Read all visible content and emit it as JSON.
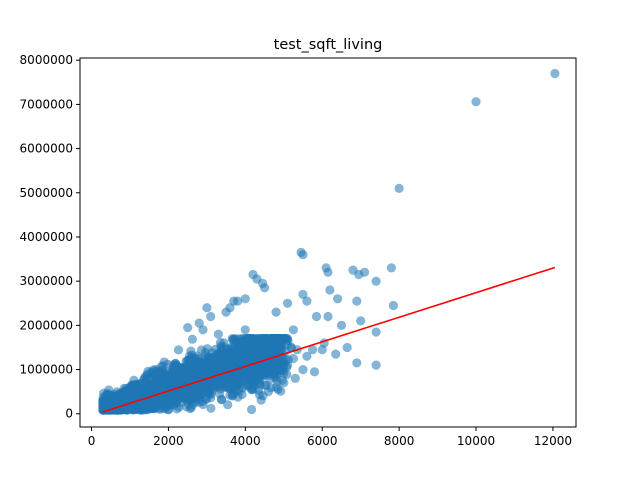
{
  "chart_data": {
    "type": "scatter",
    "title": "test_sqft_living",
    "xlabel": "",
    "ylabel": "",
    "xlim": [
      -300,
      12600
    ],
    "ylim": [
      -300000,
      8050000
    ],
    "x_ticks": [
      0,
      2000,
      4000,
      6000,
      8000,
      10000,
      12000
    ],
    "x_tick_labels": [
      "0",
      "2000",
      "4000",
      "6000",
      "8000",
      "10000",
      "12000"
    ],
    "y_ticks": [
      0,
      1000000,
      2000000,
      3000000,
      4000000,
      5000000,
      6000000,
      7000000,
      8000000
    ],
    "y_tick_labels": [
      "0",
      "1000000",
      "2000000",
      "3000000",
      "4000000",
      "5000000",
      "6000000",
      "7000000",
      "8000000"
    ],
    "grid": false,
    "series": [
      {
        "kind": "scatter",
        "color": "#1f77b4",
        "alpha": 0.55,
        "points": [
          [
            12050,
            7700000
          ],
          [
            10000,
            7060000
          ],
          [
            8000,
            5100000
          ],
          [
            5450,
            3650000
          ],
          [
            5500,
            3600000
          ],
          [
            4200,
            3150000
          ],
          [
            4300,
            3050000
          ],
          [
            4450,
            2950000
          ],
          [
            4500,
            2850000
          ],
          [
            6100,
            3300000
          ],
          [
            6150,
            3200000
          ],
          [
            6800,
            3250000
          ],
          [
            6950,
            3150000
          ],
          [
            7100,
            3200000
          ],
          [
            7800,
            3300000
          ],
          [
            7400,
            3000000
          ],
          [
            4800,
            2300000
          ],
          [
            5100,
            2500000
          ],
          [
            5600,
            2550000
          ],
          [
            5500,
            2700000
          ],
          [
            6200,
            2800000
          ],
          [
            6400,
            2600000
          ],
          [
            6900,
            2550000
          ],
          [
            7850,
            2450000
          ],
          [
            7000,
            2100000
          ],
          [
            6500,
            2000000
          ],
          [
            7400,
            1850000
          ],
          [
            6150,
            2200000
          ],
          [
            5850,
            2200000
          ],
          [
            3600,
            2400000
          ],
          [
            3700,
            2550000
          ],
          [
            3800,
            2550000
          ],
          [
            4000,
            2600000
          ],
          [
            3500,
            2300000
          ],
          [
            3000,
            2400000
          ],
          [
            3100,
            2200000
          ],
          [
            2500,
            1950000
          ],
          [
            2800,
            2050000
          ],
          [
            2900,
            1900000
          ],
          [
            3300,
            1800000
          ],
          [
            5250,
            1900000
          ],
          [
            5350,
            1450000
          ],
          [
            5600,
            1300000
          ],
          [
            5750,
            1450000
          ],
          [
            6000,
            1450000
          ],
          [
            6350,
            1350000
          ],
          [
            6900,
            1150000
          ],
          [
            7400,
            1100000
          ],
          [
            5800,
            950000
          ],
          [
            5300,
            800000
          ],
          [
            5000,
            700000
          ],
          [
            4850,
            550000
          ],
          [
            4600,
            500000
          ],
          [
            4500,
            900000
          ],
          [
            4400,
            1300000
          ],
          [
            4200,
            1700000
          ],
          [
            4000,
            1900000
          ],
          [
            4100,
            1500000
          ],
          [
            3900,
            1200000
          ],
          [
            5100,
            1100000
          ],
          [
            5500,
            1000000
          ],
          [
            5250,
            1250000
          ],
          [
            6050,
            1600000
          ],
          [
            6650,
            1500000
          ]
        ],
        "cluster": {
          "description_values": "dense bulk of points",
          "x_range": [
            300,
            5200
          ],
          "y_range": [
            80000,
            1700000
          ],
          "count": 2400
        }
      },
      {
        "kind": "line",
        "color": "#ff0000",
        "x": [
          290,
          12050
        ],
        "y": [
          40000,
          3310000
        ]
      }
    ]
  }
}
